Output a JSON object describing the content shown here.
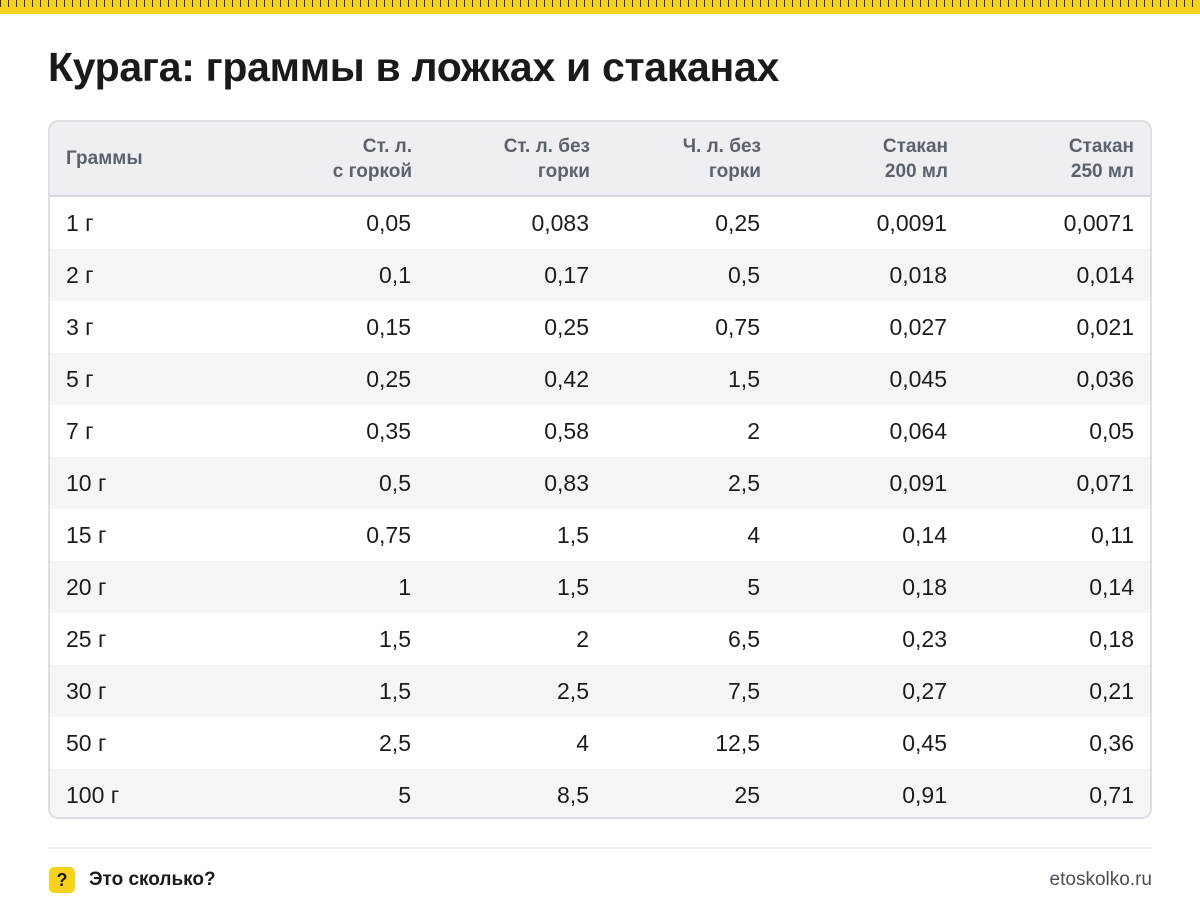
{
  "title": "Курага: граммы в ложках и стаканах",
  "table": {
    "headers": [
      [
        "Граммы"
      ],
      [
        "Ст. л.",
        "с горкой"
      ],
      [
        "Ст. л. без",
        "горки"
      ],
      [
        "Ч. л. без",
        "горки"
      ],
      [
        "Стакан",
        "200 мл"
      ],
      [
        "Стакан",
        "250 мл"
      ]
    ],
    "rows": [
      [
        "1 г",
        "0,05",
        "0,083",
        "0,25",
        "0,0091",
        "0,0071"
      ],
      [
        "2 г",
        "0,1",
        "0,17",
        "0,5",
        "0,018",
        "0,014"
      ],
      [
        "3 г",
        "0,15",
        "0,25",
        "0,75",
        "0,027",
        "0,021"
      ],
      [
        "5 г",
        "0,25",
        "0,42",
        "1,5",
        "0,045",
        "0,036"
      ],
      [
        "7 г",
        "0,35",
        "0,58",
        "2",
        "0,064",
        "0,05"
      ],
      [
        "10 г",
        "0,5",
        "0,83",
        "2,5",
        "0,091",
        "0,071"
      ],
      [
        "15 г",
        "0,75",
        "1,5",
        "4",
        "0,14",
        "0,11"
      ],
      [
        "20 г",
        "1",
        "1,5",
        "5",
        "0,18",
        "0,14"
      ],
      [
        "25 г",
        "1,5",
        "2",
        "6,5",
        "0,23",
        "0,18"
      ],
      [
        "30 г",
        "1,5",
        "2,5",
        "7,5",
        "0,27",
        "0,21"
      ],
      [
        "50 г",
        "2,5",
        "4",
        "12,5",
        "0,45",
        "0,36"
      ],
      [
        "100 г",
        "5",
        "8,5",
        "25",
        "0,91",
        "0,71"
      ]
    ]
  },
  "footer": {
    "badge": "?",
    "brand": "Это сколько?",
    "site": "etoskolko.ru"
  },
  "colors": {
    "accent": "#f7d21c",
    "header_bg": "#edeff2",
    "stripe_bg": "#f4f5f7"
  }
}
